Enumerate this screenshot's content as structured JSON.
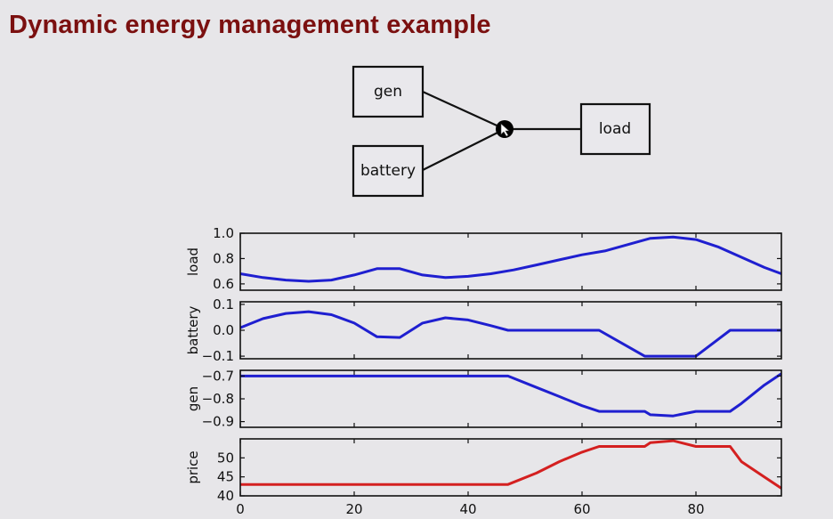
{
  "slide": {
    "title": "Dynamic energy management example"
  },
  "diagram": {
    "nodes": [
      {
        "id": "gen",
        "label": "gen"
      },
      {
        "id": "battery",
        "label": "battery"
      },
      {
        "id": "load",
        "label": "load"
      }
    ]
  },
  "colors": {
    "title": "#7b1010",
    "series_blue": "#1f1fd0",
    "series_red": "#d42020"
  },
  "chart_data": [
    {
      "type": "line",
      "ylabel": "load",
      "xlim": [
        0,
        95
      ],
      "ylim": [
        0.55,
        1.0
      ],
      "yticks": [
        "1.0",
        "0.8",
        "0.6"
      ],
      "ytick_values": [
        1.0,
        0.8,
        0.6
      ],
      "color": "#1f1fd0",
      "x": [
        0,
        4,
        8,
        12,
        16,
        20,
        24,
        28,
        32,
        36,
        40,
        44,
        48,
        52,
        56,
        60,
        64,
        68,
        72,
        76,
        80,
        84,
        88,
        92,
        95
      ],
      "y": [
        0.68,
        0.65,
        0.63,
        0.62,
        0.63,
        0.67,
        0.72,
        0.72,
        0.67,
        0.65,
        0.66,
        0.68,
        0.71,
        0.75,
        0.79,
        0.83,
        0.86,
        0.91,
        0.96,
        0.97,
        0.95,
        0.89,
        0.81,
        0.73,
        0.68
      ]
    },
    {
      "type": "line",
      "ylabel": "battery",
      "xlim": [
        0,
        95
      ],
      "ylim": [
        -0.11,
        0.11
      ],
      "yticks": [
        "0.1",
        "0.0",
        "−0.1"
      ],
      "ytick_values": [
        0.1,
        0.0,
        -0.1
      ],
      "color": "#1f1fd0",
      "x": [
        0,
        4,
        8,
        12,
        16,
        20,
        24,
        28,
        32,
        36,
        40,
        44,
        47,
        63,
        71,
        80,
        86,
        95
      ],
      "y": [
        0.01,
        0.045,
        0.065,
        0.072,
        0.06,
        0.028,
        -0.025,
        -0.028,
        0.028,
        0.048,
        0.04,
        0.018,
        0.0,
        0.0,
        -0.1,
        -0.1,
        0.0,
        0.0
      ]
    },
    {
      "type": "line",
      "ylabel": "gen",
      "xlim": [
        0,
        95
      ],
      "ylim": [
        -0.925,
        -0.675
      ],
      "yticks": [
        "−0.7",
        "−0.8",
        "−0.9"
      ],
      "ytick_values": [
        -0.7,
        -0.8,
        -0.9
      ],
      "color": "#1f1fd0",
      "x": [
        0,
        47,
        52,
        56,
        60,
        63,
        71,
        72,
        76,
        80,
        86,
        88,
        92,
        95
      ],
      "y": [
        -0.7,
        -0.7,
        -0.75,
        -0.79,
        -0.83,
        -0.855,
        -0.855,
        -0.87,
        -0.875,
        -0.855,
        -0.855,
        -0.82,
        -0.74,
        -0.69
      ]
    },
    {
      "type": "line",
      "ylabel": "price",
      "xlim": [
        0,
        95
      ],
      "ylim": [
        40,
        55
      ],
      "yticks": [
        "50",
        "45",
        "40"
      ],
      "ytick_values": [
        50,
        45,
        40
      ],
      "xticks": [
        "0",
        "20",
        "40",
        "60",
        "80"
      ],
      "xtick_values": [
        0,
        20,
        40,
        60,
        80
      ],
      "color": "#d42020",
      "x": [
        0,
        47,
        52,
        56,
        60,
        63,
        71,
        72,
        76,
        80,
        86,
        88,
        92,
        95
      ],
      "y": [
        43,
        43,
        46,
        49,
        51.5,
        53,
        53,
        54,
        54.5,
        53,
        53,
        49,
        45,
        42
      ]
    }
  ]
}
